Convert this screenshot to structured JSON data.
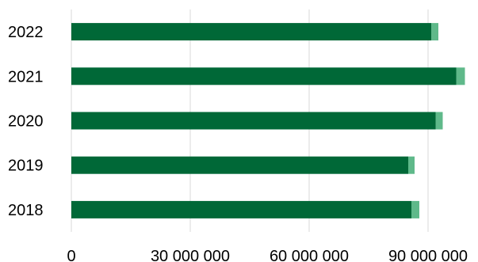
{
  "chart_data": {
    "type": "bar",
    "orientation": "horizontal",
    "stacked": true,
    "title": "",
    "xlabel": "",
    "ylabel": "",
    "categories": [
      "2022",
      "2021",
      "2020",
      "2019",
      "2018"
    ],
    "series": [
      {
        "values": [
          90800000,
          97100000,
          91900000,
          85000000,
          85800000
        ],
        "color": "#006837"
      },
      {
        "values": [
          1800000,
          2200000,
          1800000,
          1600000,
          2000000
        ],
        "color": "#5fb98a"
      }
    ],
    "xlim": [
      0,
      100000000
    ],
    "x_ticks": [
      {
        "value": 0,
        "label": "0"
      },
      {
        "value": 30000000,
        "label": "30 000 000"
      },
      {
        "value": 60000000,
        "label": "60 000 000"
      },
      {
        "value": 90000000,
        "label": "90 000 000"
      }
    ],
    "grid": "vertical",
    "legend": "none"
  }
}
